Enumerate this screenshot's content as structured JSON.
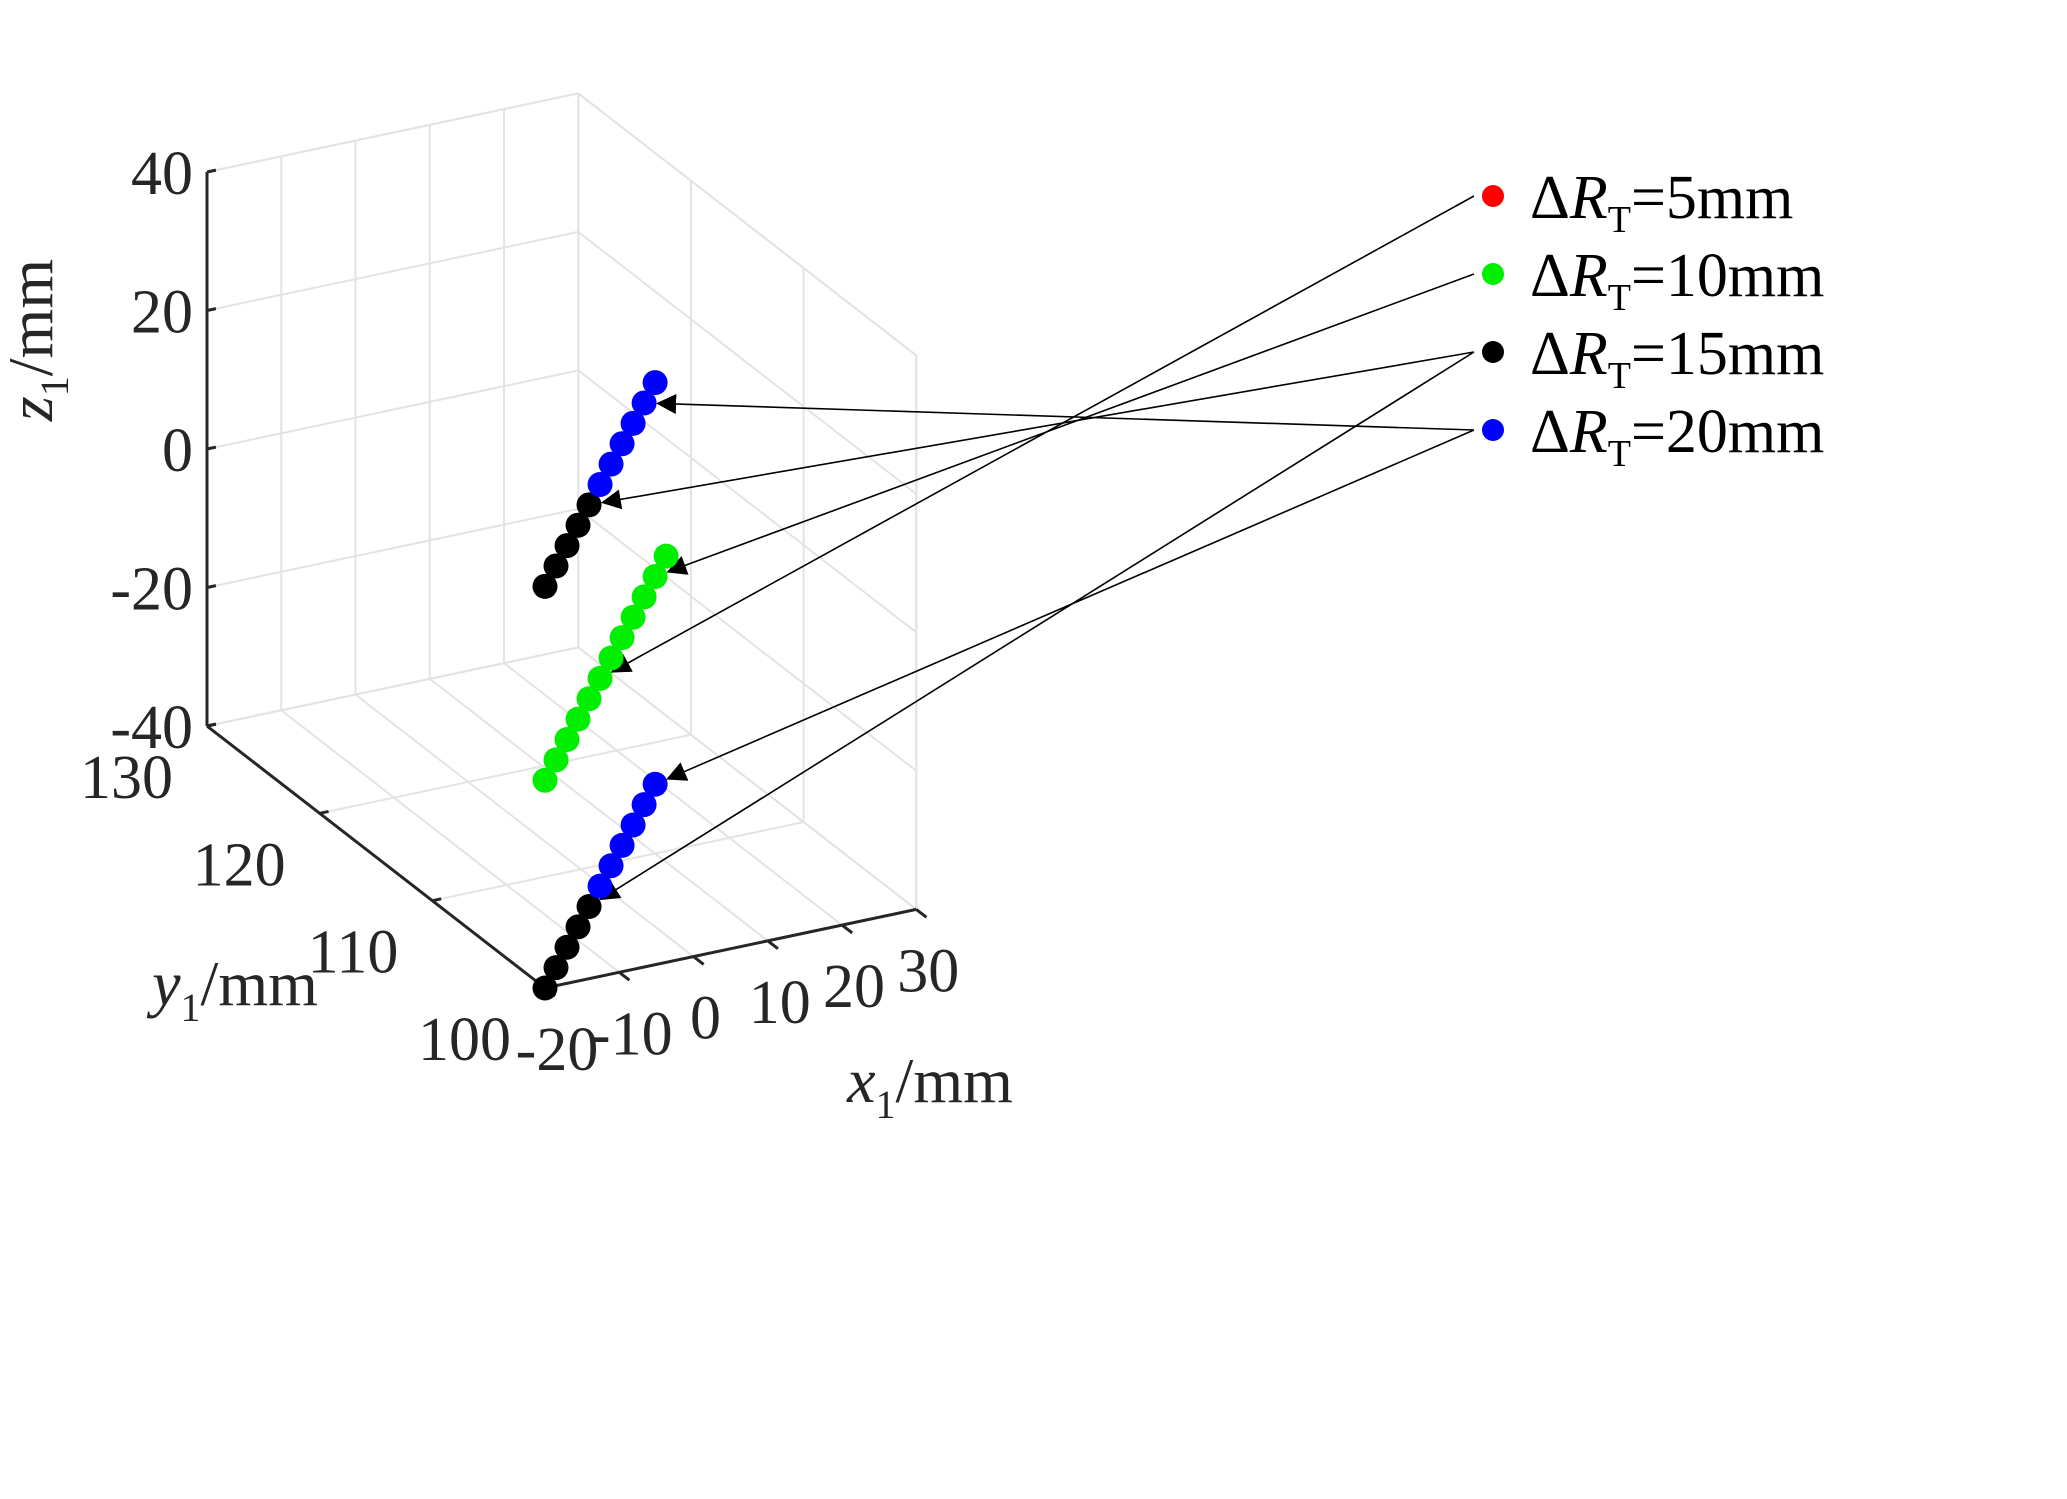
{
  "chart_data": {
    "type": "scatter",
    "dimensions": 3,
    "x_axis": {
      "var": "x",
      "sub": "1",
      "unit": "/mm",
      "ticks": [
        "-20",
        "-10",
        "0",
        "10",
        "20",
        "30"
      ],
      "range": [
        -20,
        30
      ]
    },
    "y_axis": {
      "var": "y",
      "sub": "1",
      "unit": "/mm",
      "ticks": [
        "100",
        "110",
        "120",
        "130"
      ],
      "range": [
        100,
        130
      ]
    },
    "z_axis": {
      "var": "z",
      "sub": "1",
      "unit": "/mm",
      "ticks": [
        "-40",
        "-20",
        "0",
        "20",
        "40"
      ],
      "range": [
        -40,
        40
      ]
    },
    "grid": true,
    "legend": {
      "position": "right",
      "entries": [
        {
          "symbol": "ΔR",
          "sub": "T",
          "text": "=5mm",
          "color": "#ff0000"
        },
        {
          "symbol": "ΔR",
          "sub": "T",
          "text": "=10mm",
          "color": "#00ee00"
        },
        {
          "symbol": "ΔR",
          "sub": "T",
          "text": "=15mm",
          "color": "#000000"
        },
        {
          "symbol": "ΔR",
          "sub": "T",
          "text": "=20mm",
          "color": "#0000ff"
        }
      ]
    },
    "series": [
      {
        "name": "ΔRT=5mm",
        "color": "#ff0000",
        "points": []
      },
      {
        "name": "ΔRT=10mm",
        "color": "#00ee00",
        "points": [
          [
            -20,
            100,
            -10
          ],
          [
            -17,
            101,
            -9
          ],
          [
            -14,
            102,
            -8
          ],
          [
            -11,
            103,
            -7
          ],
          [
            -8,
            104,
            -6
          ],
          [
            -5,
            105,
            -5
          ],
          [
            -2,
            106,
            -4
          ],
          [
            1,
            107,
            -3
          ],
          [
            4,
            108,
            -2
          ],
          [
            7,
            109,
            -1
          ],
          [
            10,
            110,
            0
          ],
          [
            13,
            111,
            1
          ]
        ]
      },
      {
        "name": "ΔRT=15mm",
        "color": "#000000",
        "points": [
          [
            -20,
            100,
            18
          ],
          [
            -17,
            101,
            19
          ],
          [
            -14,
            102,
            20
          ],
          [
            -11,
            103,
            21
          ],
          [
            -8,
            104,
            22
          ],
          [
            -20,
            100,
            -40
          ],
          [
            -17,
            101,
            -39
          ],
          [
            -14,
            102,
            -38
          ],
          [
            -11,
            103,
            -37
          ],
          [
            -8,
            104,
            -36
          ]
        ]
      },
      {
        "name": "ΔRT=20mm",
        "color": "#0000ff",
        "points": [
          [
            -5,
            105,
            23
          ],
          [
            -2,
            106,
            24
          ],
          [
            1,
            107,
            25
          ],
          [
            4,
            108,
            26
          ],
          [
            7,
            109,
            27
          ],
          [
            10,
            110,
            28
          ],
          [
            -5,
            105,
            -35
          ],
          [
            -2,
            106,
            -34
          ],
          [
            1,
            107,
            -33
          ],
          [
            4,
            108,
            -32
          ],
          [
            7,
            109,
            -31
          ],
          [
            10,
            110,
            -30
          ]
        ]
      }
    ],
    "annotations": [
      {
        "type": "arrow",
        "from_legend": 0,
        "to": [
          -5,
          105,
          -5
        ]
      },
      {
        "type": "arrow",
        "from_legend": 1,
        "to": [
          10,
          110,
          0
        ]
      },
      {
        "type": "arrow",
        "from_legend": 2,
        "to": [
          -8,
          104,
          22
        ]
      },
      {
        "type": "arrow",
        "from_legend": 2,
        "to": [
          -8,
          104,
          -36
        ]
      },
      {
        "type": "arrow",
        "from_legend": 3,
        "to": [
          7,
          109,
          27
        ]
      },
      {
        "type": "arrow",
        "from_legend": 3,
        "to": [
          10,
          110,
          -30
        ]
      }
    ]
  }
}
